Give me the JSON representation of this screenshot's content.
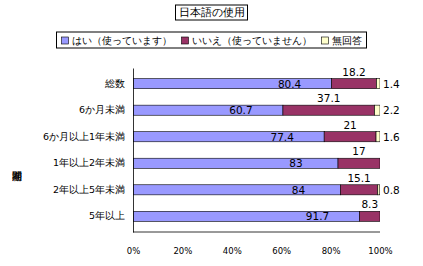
{
  "chart_data": {
    "type": "bar",
    "orientation": "horizontal",
    "stacked": true,
    "data_labels": true,
    "grid": false,
    "legend": "top",
    "title": "日本語の使用",
    "ylabel": "滞在期間",
    "categories": [
      "総数",
      "6か月未満",
      "6か月以上1年未満",
      "1年以上2年未満",
      "2年以上5年未満",
      "5年以上"
    ],
    "series": [
      {
        "name": "はい（使っています）",
        "color": "#9999ff",
        "values": [
          80.4,
          60.7,
          77.4,
          83,
          84,
          91.7
        ]
      },
      {
        "name": "いいえ（使っていません）",
        "color": "#993366",
        "values": [
          18.2,
          37.1,
          21,
          17,
          15.1,
          8.3
        ]
      },
      {
        "name": "無回答",
        "color": "#ffffcc",
        "values": [
          1.4,
          2.2,
          1.6,
          null,
          0.8,
          null
        ]
      }
    ],
    "xlim": [
      0,
      100
    ],
    "xticks": [
      {
        "value": 0,
        "label": "0%"
      },
      {
        "value": 20,
        "label": "20%"
      },
      {
        "value": 40,
        "label": "40%"
      },
      {
        "value": 60,
        "label": "60%"
      },
      {
        "value": 80,
        "label": "80%"
      },
      {
        "value": 100,
        "label": "100%"
      }
    ]
  }
}
